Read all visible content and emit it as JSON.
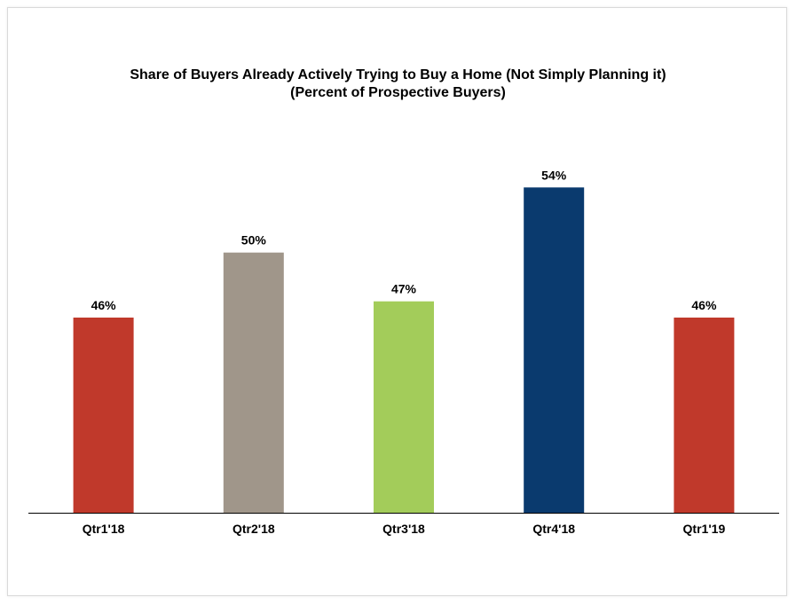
{
  "chart_data": {
    "type": "bar",
    "title": "Share of Buyers Already Actively Trying to Buy a Home (Not Simply Planning it)",
    "subtitle": "(Percent of Prospective Buyers)",
    "categories": [
      "Qtr1'18",
      "Qtr2'18",
      "Qtr3'18",
      "Qtr4'18",
      "Qtr1'19"
    ],
    "values": [
      46,
      50,
      47,
      54,
      46
    ],
    "value_labels": [
      "46%",
      "50%",
      "47%",
      "54%",
      "46%"
    ],
    "bar_colors": [
      "#c0392b",
      "#a0968a",
      "#a3cc5a",
      "#0a3a6e",
      "#c0392b"
    ],
    "axis_color": "#000000",
    "ylim": [
      34,
      55
    ],
    "grid": false,
    "legend": "none"
  }
}
